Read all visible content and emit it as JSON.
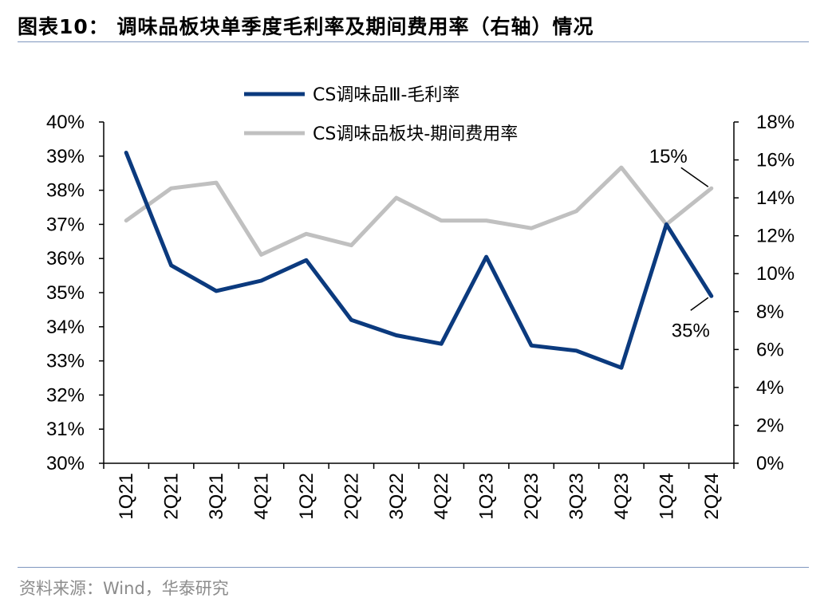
{
  "title": "图表10：  调味品板块单季度毛利率及期间费用率（右轴）情况",
  "source": "资料来源：Wind，华泰研究",
  "chart_data": {
    "type": "line",
    "categories": [
      "1Q21",
      "2Q21",
      "3Q21",
      "4Q21",
      "1Q22",
      "2Q22",
      "3Q22",
      "4Q22",
      "1Q23",
      "2Q23",
      "3Q23",
      "4Q23",
      "1Q24",
      "2Q24"
    ],
    "series": [
      {
        "name": "CS调味品Ⅲ-毛利率",
        "axis": "left",
        "color": "#0b3a7e",
        "values": [
          39.1,
          35.8,
          35.05,
          35.35,
          35.95,
          34.2,
          33.75,
          33.5,
          36.05,
          33.45,
          33.3,
          32.8,
          37.0,
          34.9
        ]
      },
      {
        "name": "CS调味品板块-期间费用率",
        "axis": "right",
        "color": "#c0c0c0",
        "values": [
          12.8,
          14.5,
          14.8,
          11.0,
          12.1,
          11.5,
          14.0,
          12.8,
          12.8,
          12.4,
          13.3,
          15.6,
          12.6,
          14.5
        ]
      }
    ],
    "left_axis": {
      "ylim": [
        30,
        40
      ],
      "ticks": [
        "30%",
        "31%",
        "32%",
        "33%",
        "34%",
        "35%",
        "36%",
        "37%",
        "38%",
        "39%",
        "40%"
      ]
    },
    "right_axis": {
      "ylim": [
        0,
        18
      ],
      "ticks": [
        "0%",
        "2%",
        "4%",
        "6%",
        "8%",
        "10%",
        "12%",
        "14%",
        "16%",
        "18%"
      ]
    },
    "annotations": [
      {
        "text": "15%",
        "series": 1,
        "index": 13
      },
      {
        "text": "35%",
        "series": 0,
        "index": 13
      }
    ],
    "legend_position": "top-center",
    "grid": false
  }
}
